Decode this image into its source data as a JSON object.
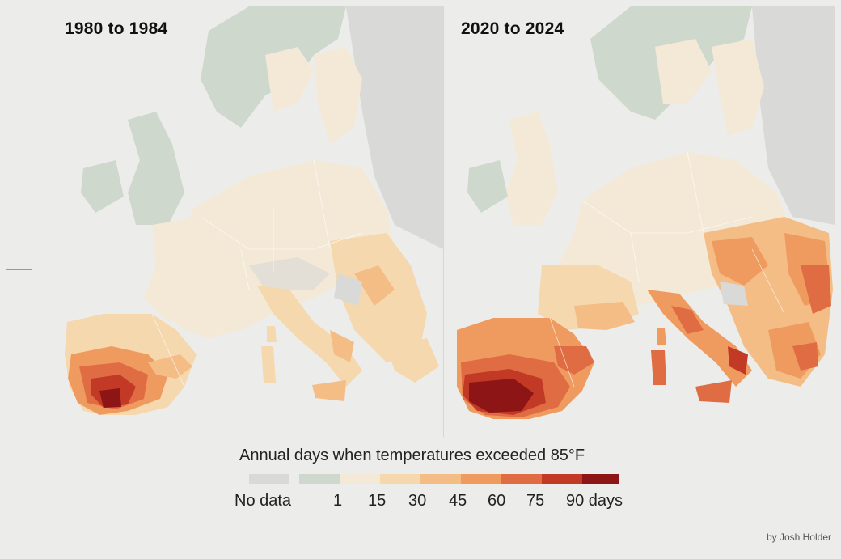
{
  "panels": {
    "left": {
      "title": "1980 to 1984"
    },
    "right": {
      "title": "2020 to 2024"
    }
  },
  "legend": {
    "title": "Annual days when temperatures exceeded 85°F",
    "bins": [
      {
        "label": "No data",
        "color": "#d9d9d7"
      },
      {
        "label": "1",
        "color": "#cfd8cc"
      },
      {
        "label": "15",
        "color": "#f3e9d6"
      },
      {
        "label": "30",
        "color": "#f6d8ae"
      },
      {
        "label": "45",
        "color": "#f4bd85"
      },
      {
        "label": "60",
        "color": "#ef9b60"
      },
      {
        "label": "75",
        "color": "#e06c43"
      },
      {
        "label": "90 days",
        "color": "#c23a26"
      },
      {
        "label": "",
        "color": "#8e1515"
      }
    ]
  },
  "colors": {
    "background": "#ececeb",
    "sea": "#ececeb",
    "no_data": "#d9d9d7",
    "cool": "#cfd8cc",
    "low": "#f3e9d6",
    "high": "#8e1515"
  },
  "credit": "by Josh Holder"
}
